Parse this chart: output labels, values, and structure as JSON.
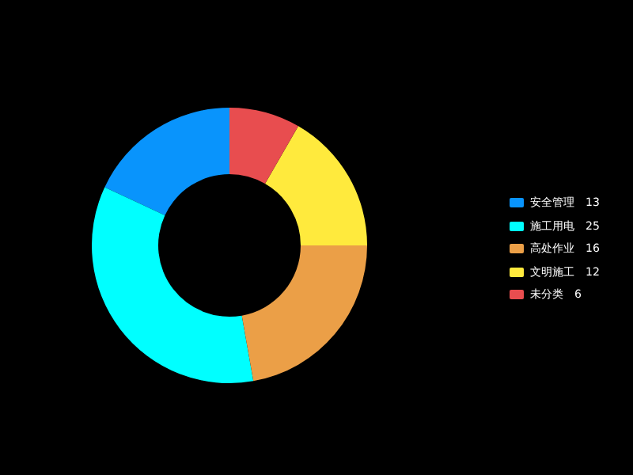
{
  "chart_data": {
    "type": "donut",
    "categories": [
      "安全管理",
      "施工用电",
      "高处作业",
      "文明施工",
      "未分类"
    ],
    "values": [
      13,
      25,
      16,
      12,
      6
    ],
    "colors": [
      "#0994fc",
      "#00ffff",
      "#eb9f47",
      "#ffea3d",
      "#e84d4f"
    ],
    "legend": "right",
    "data_labels": true
  }
}
